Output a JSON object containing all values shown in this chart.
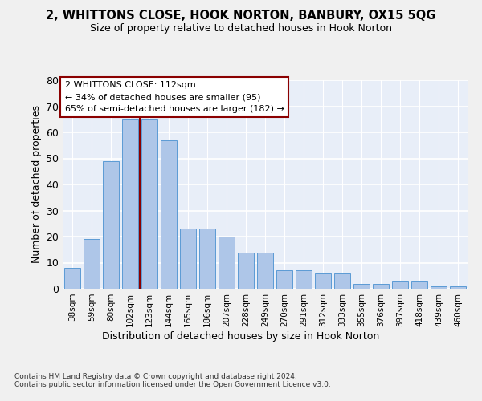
{
  "title": "2, WHITTONS CLOSE, HOOK NORTON, BANBURY, OX15 5QG",
  "subtitle": "Size of property relative to detached houses in Hook Norton",
  "xlabel": "Distribution of detached houses by size in Hook Norton",
  "ylabel": "Number of detached properties",
  "categories": [
    "38sqm",
    "59sqm",
    "80sqm",
    "102sqm",
    "123sqm",
    "144sqm",
    "165sqm",
    "186sqm",
    "207sqm",
    "228sqm",
    "249sqm",
    "270sqm",
    "291sqm",
    "312sqm",
    "333sqm",
    "355sqm",
    "376sqm",
    "397sqm",
    "418sqm",
    "439sqm",
    "460sqm"
  ],
  "bar_values": [
    8,
    19,
    49,
    65,
    65,
    57,
    23,
    23,
    20,
    14,
    14,
    7,
    7,
    6,
    6,
    2,
    2,
    3,
    3,
    1,
    1
  ],
  "bar_color": "#aec6e8",
  "bar_edge_color": "#5b9bd5",
  "vline_x": 3.5,
  "vline_color": "#8b0000",
  "annotation_text": "2 WHITTONS CLOSE: 112sqm\n← 34% of detached houses are smaller (95)\n65% of semi-detached houses are larger (182) →",
  "annotation_box_color": "#ffffff",
  "annotation_box_edgecolor": "#8b0000",
  "ylim": [
    0,
    80
  ],
  "yticks": [
    0,
    10,
    20,
    30,
    40,
    50,
    60,
    70,
    80
  ],
  "background_color": "#e8eef8",
  "grid_color": "#ffffff",
  "fig_bg": "#f0f0f0",
  "footer": "Contains HM Land Registry data © Crown copyright and database right 2024.\nContains public sector information licensed under the Open Government Licence v3.0."
}
